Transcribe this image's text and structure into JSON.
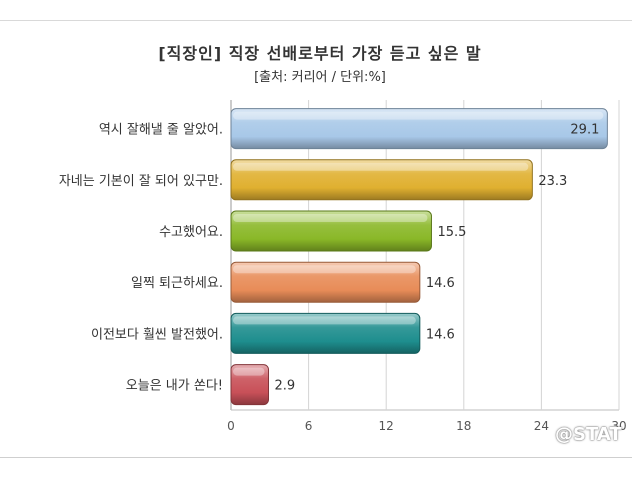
{
  "chart_data": {
    "type": "bar",
    "orientation": "horizontal",
    "title": "[직장인] 직장 선배로부터 가장 듣고 싶은 말",
    "subtitle": "[출처: 커리어 / 단위:%]",
    "categories": [
      "역시 잘해낼 줄 알았어.",
      "자네는 기본이 잘 되어 있구만.",
      "수고했어요.",
      "일찍 퇴근하세요.",
      "이전보다 훨씬 발전했어.",
      "오늘은 내가 쏜다!"
    ],
    "values": [
      29.1,
      23.3,
      15.5,
      14.6,
      14.6,
      2.9
    ],
    "value_labels": [
      "29.1",
      "23.3",
      "15.5",
      "14.6",
      "14.6",
      "2.9"
    ],
    "bar_colors": [
      "#a8c8e8",
      "#e0b030",
      "#8ab828",
      "#e88c58",
      "#1e8e8e",
      "#c85058"
    ],
    "xlim": [
      0,
      30
    ],
    "xticks": [
      0,
      6,
      12,
      18,
      24,
      30
    ],
    "xtick_labels": [
      "0",
      "6",
      "12",
      "18",
      "24",
      "30"
    ],
    "grid": true,
    "watermark": "@STAT"
  }
}
